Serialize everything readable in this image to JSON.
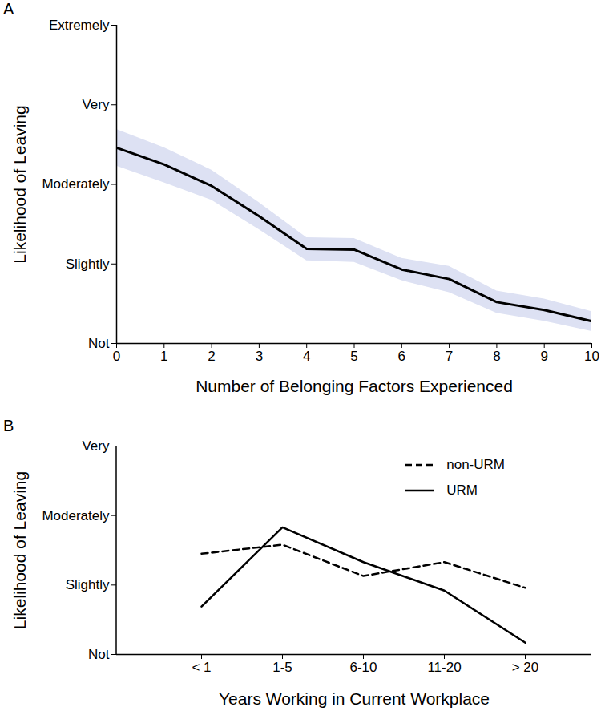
{
  "chart_data": [
    {
      "type": "line",
      "title": "A",
      "x": [
        0,
        1,
        2,
        3,
        4,
        5,
        6,
        7,
        8,
        9,
        10
      ],
      "values": [
        3.46,
        3.25,
        2.98,
        2.6,
        2.19,
        2.18,
        1.93,
        1.81,
        1.52,
        1.42,
        1.28
      ],
      "ci_lower": [
        3.23,
        3.02,
        2.8,
        2.43,
        2.04,
        2.02,
        1.79,
        1.64,
        1.38,
        1.28,
        1.15
      ],
      "ci_upper": [
        3.69,
        3.46,
        3.18,
        2.77,
        2.33,
        2.32,
        2.07,
        1.97,
        1.66,
        1.56,
        1.4
      ],
      "color": "#000000",
      "x_label": "Number of Belonging Factors Experienced",
      "y_label": "Likelihood of Leaving",
      "xlim": [
        0,
        10
      ],
      "xticks": [
        0,
        1,
        2,
        3,
        4,
        5,
        6,
        7,
        8,
        9,
        10
      ],
      "ylim": [
        1,
        5
      ],
      "yticks": [
        {
          "value": 1,
          "label": "Not"
        },
        {
          "value": 2,
          "label": "Slightly"
        },
        {
          "value": 3,
          "label": "Moderately"
        },
        {
          "value": 4,
          "label": "Very"
        },
        {
          "value": 5,
          "label": "Extremely"
        }
      ]
    },
    {
      "type": "line",
      "title": "B",
      "categories": [
        "< 1",
        "1-5",
        "6-10",
        "11-20",
        "> 20"
      ],
      "series": [
        {
          "name": "non-URM",
          "color": "#000000",
          "line_style": "dashed",
          "values": [
            2.45,
            2.58,
            2.13,
            2.33,
            1.96
          ]
        },
        {
          "name": "URM",
          "color": "#000000",
          "line_style": "solid",
          "values": [
            1.69,
            2.83,
            2.33,
            1.92,
            1.17
          ]
        }
      ],
      "x_label": "Years Working in Current Workplace",
      "y_label": "Likelihood of Leaving",
      "ylim": [
        1,
        4
      ],
      "yticks": [
        {
          "value": 1,
          "label": "Not"
        },
        {
          "value": 2,
          "label": "Slightly"
        },
        {
          "value": 3,
          "label": "Moderately"
        },
        {
          "value": 4,
          "label": "Very"
        }
      ],
      "legend": "top-right"
    }
  ]
}
